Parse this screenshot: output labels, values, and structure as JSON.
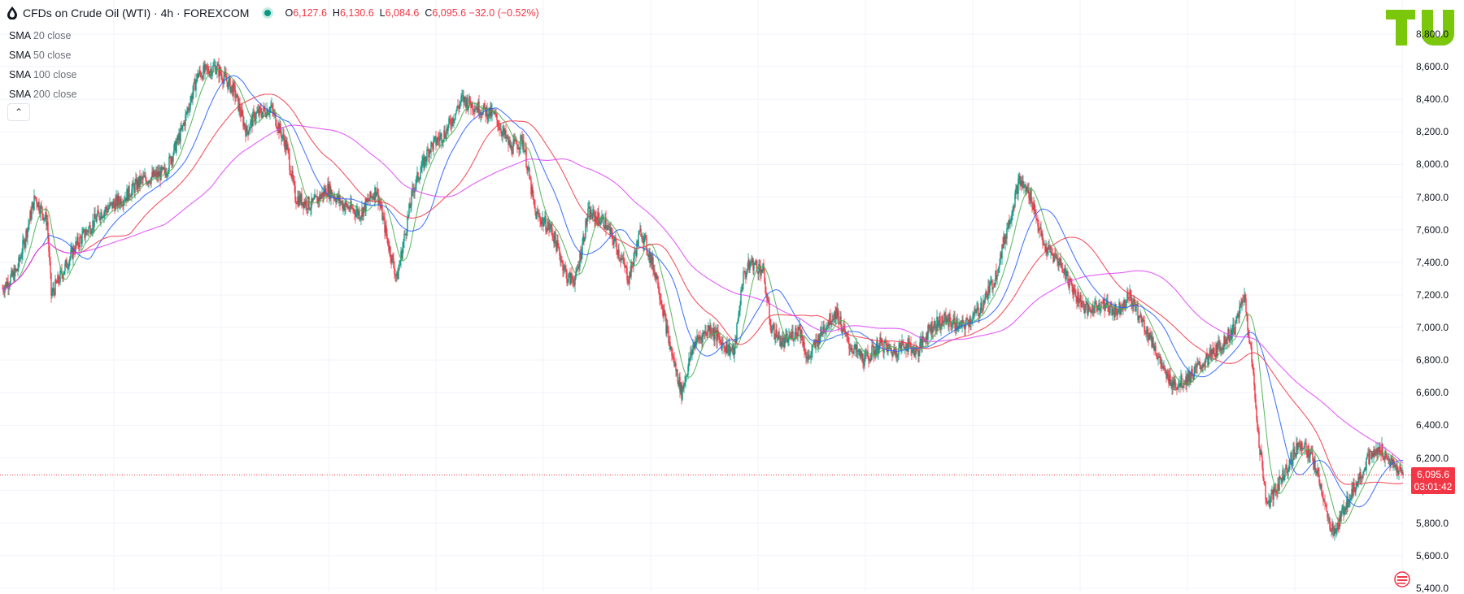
{
  "header": {
    "title": "CFDs on Crude Oil (WTI) · 4h · FOREXCOM",
    "ohlc": [
      {
        "k": "O",
        "v": "6,127.6"
      },
      {
        "k": "H",
        "v": "6,130.6"
      },
      {
        "k": "L",
        "v": "6,084.6"
      },
      {
        "k": "C",
        "v": "6,095.6 −32.0 (−0.52%)"
      }
    ]
  },
  "indicators": [
    {
      "name": "SMA",
      "param": "20 close"
    },
    {
      "name": "SMA",
      "param": "50 close"
    },
    {
      "name": "SMA",
      "param": "100 close"
    },
    {
      "name": "SMA",
      "param": "200 close"
    }
  ],
  "last_price": {
    "value": "6,095.6",
    "countdown": "03:01:42"
  },
  "colors": {
    "up": "#089981",
    "down": "#f23645",
    "sma20": "#4caf50",
    "sma50": "#2962ff",
    "sma100": "#f23645",
    "sma200": "#e040fb",
    "grid": "#f0f3fa"
  },
  "chart_data": {
    "type": "candlestick",
    "symbol": "CFDs on Crude Oil (WTI)",
    "interval": "4h",
    "ylim": [
      5400,
      8800
    ],
    "y_ticks": [
      "5,400.0",
      "5,600.0",
      "5,800.0",
      "6,000.0",
      "6,200.0",
      "6,400.0",
      "6,600.0",
      "6,800.0",
      "7,000.0",
      "7,200.0",
      "7,400.0",
      "7,600.0",
      "7,800.0",
      "8,000.0",
      "8,200.0",
      "8,400.0",
      "8,600.0",
      "8,800.0"
    ],
    "anchors": [
      [
        0,
        7240
      ],
      [
        18,
        7350
      ],
      [
        40,
        7800
      ],
      [
        55,
        7650
      ],
      [
        60,
        7200
      ],
      [
        90,
        7500
      ],
      [
        120,
        7700
      ],
      [
        150,
        7800
      ],
      [
        170,
        7900
      ],
      [
        200,
        7950
      ],
      [
        220,
        8200
      ],
      [
        240,
        8550
      ],
      [
        262,
        8600
      ],
      [
        285,
        8450
      ],
      [
        300,
        8200
      ],
      [
        310,
        8300
      ],
      [
        330,
        8350
      ],
      [
        350,
        8100
      ],
      [
        360,
        7800
      ],
      [
        380,
        7750
      ],
      [
        400,
        7850
      ],
      [
        420,
        7750
      ],
      [
        440,
        7700
      ],
      [
        460,
        7850
      ],
      [
        475,
        7500
      ],
      [
        485,
        7300
      ],
      [
        505,
        7850
      ],
      [
        525,
        8100
      ],
      [
        545,
        8200
      ],
      [
        565,
        8400
      ],
      [
        585,
        8350
      ],
      [
        605,
        8300
      ],
      [
        625,
        8100
      ],
      [
        640,
        8150
      ],
      [
        655,
        7700
      ],
      [
        675,
        7600
      ],
      [
        695,
        7300
      ],
      [
        705,
        7300
      ],
      [
        720,
        7700
      ],
      [
        740,
        7650
      ],
      [
        755,
        7500
      ],
      [
        770,
        7300
      ],
      [
        785,
        7600
      ],
      [
        805,
        7300
      ],
      [
        820,
        6900
      ],
      [
        835,
        6600
      ],
      [
        850,
        6900
      ],
      [
        870,
        7000
      ],
      [
        885,
        6900
      ],
      [
        900,
        6850
      ],
      [
        910,
        7300
      ],
      [
        920,
        7400
      ],
      [
        935,
        7350
      ],
      [
        945,
        7000
      ],
      [
        960,
        6900
      ],
      [
        980,
        7000
      ],
      [
        990,
        6800
      ],
      [
        1010,
        7000
      ],
      [
        1025,
        7100
      ],
      [
        1040,
        6900
      ],
      [
        1060,
        6800
      ],
      [
        1080,
        6900
      ],
      [
        1095,
        6850
      ],
      [
        1110,
        6900
      ],
      [
        1125,
        6850
      ],
      [
        1140,
        7000
      ],
      [
        1160,
        7050
      ],
      [
        1180,
        7000
      ],
      [
        1200,
        7100
      ],
      [
        1220,
        7300
      ],
      [
        1235,
        7600
      ],
      [
        1250,
        7900
      ],
      [
        1265,
        7800
      ],
      [
        1280,
        7500
      ],
      [
        1300,
        7400
      ],
      [
        1320,
        7200
      ],
      [
        1335,
        7100
      ],
      [
        1350,
        7150
      ],
      [
        1370,
        7100
      ],
      [
        1385,
        7200
      ],
      [
        1400,
        7050
      ],
      [
        1415,
        6900
      ],
      [
        1430,
        6700
      ],
      [
        1445,
        6650
      ],
      [
        1460,
        6700
      ],
      [
        1480,
        6800
      ],
      [
        1500,
        6900
      ],
      [
        1515,
        7000
      ],
      [
        1527,
        7200
      ],
      [
        1535,
        6850
      ],
      [
        1545,
        6300
      ],
      [
        1555,
        5900
      ],
      [
        1565,
        6000
      ],
      [
        1580,
        6150
      ],
      [
        1595,
        6300
      ],
      [
        1610,
        6200
      ],
      [
        1620,
        6050
      ],
      [
        1630,
        5800
      ],
      [
        1640,
        5750
      ],
      [
        1650,
        5900
      ],
      [
        1665,
        6050
      ],
      [
        1680,
        6200
      ],
      [
        1695,
        6250
      ],
      [
        1710,
        6150
      ],
      [
        1722,
        6095
      ]
    ],
    "last": 6095.6
  }
}
